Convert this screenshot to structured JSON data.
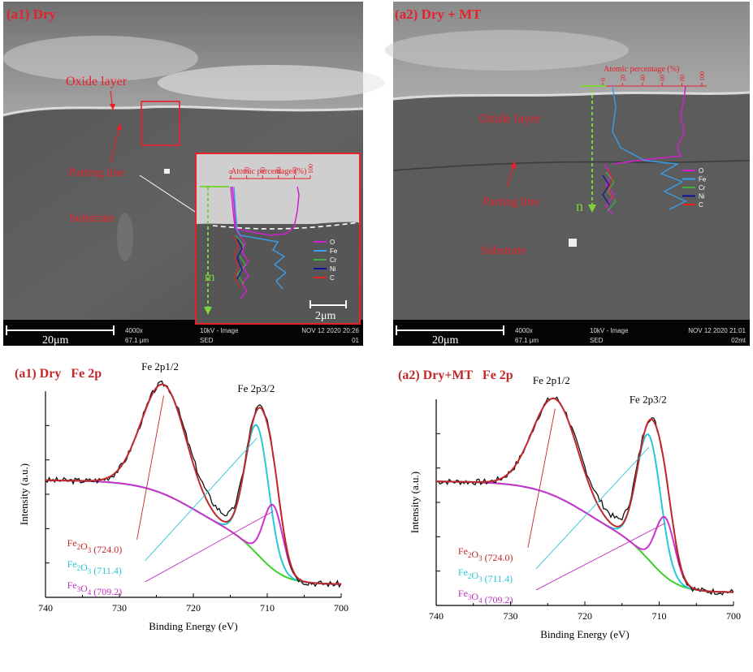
{
  "panels": {
    "a1": {
      "title": "(a1) Dry",
      "labels": {
        "oxide": "Oxide layer",
        "parting": "Parting line",
        "substrate": "Substrate"
      },
      "scalebar": "20μm",
      "inset_scalebar": "2μm",
      "depth_arrow": "m",
      "profile_axis_title": "Atomic percentage (%)",
      "profile_ticks": [
        "0",
        "20",
        "40",
        "60",
        "80",
        "100"
      ],
      "legend": [
        "O",
        "Fe",
        "Cr",
        "Ni",
        "C"
      ],
      "info": {
        "mag": "4000x",
        "hfw": "67.1 μm",
        "mode": "10kV - Image",
        "det": "SED",
        "date": "NOV 12 2020 20:26",
        "id": "01"
      }
    },
    "a2": {
      "title": "(a2) Dry + MT",
      "labels": {
        "oxide": "Oxide layer",
        "parting": "Parting line",
        "substrate": "Substrate"
      },
      "scalebar": "20μm",
      "depth_arrow": "n",
      "profile_axis_title": "Atomic percentage (%)",
      "profile_ticks": [
        "0",
        "20",
        "40",
        "60",
        "80",
        "100"
      ],
      "legend": [
        "O",
        "Fe",
        "Cr",
        "Ni",
        "C"
      ],
      "info": {
        "mag": "4000x",
        "hfw": "67.1 μm",
        "mode": "10kV - Image",
        "det": "SED",
        "date": "NOV 12 2020 21:01",
        "id": "02mt"
      }
    }
  },
  "colors": {
    "label_red": "#e8202a",
    "O": "#d020d0",
    "Fe": "#3a9ee8",
    "Cr": "#40b040",
    "Ni": "#1010a0",
    "C": "#e82020",
    "arrow": "#7ad33a"
  },
  "chart_data": [
    {
      "type": "line",
      "title": "(a1) Dry   Fe 2p",
      "xlabel": "Binding Energy (eV)",
      "ylabel": "Intensity (a.u.)",
      "xlim": [
        740,
        700
      ],
      "x_reversed": true,
      "xticks": [
        740,
        730,
        720,
        710,
        700
      ],
      "peak_labels": {
        "p12": "Fe 2p1/2",
        "p32": "Fe 2p3/2"
      },
      "annotations": [
        {
          "base": "Fe",
          "sub1": "2",
          "mid": "O",
          "sub2": "3",
          "tail": " (724.0)",
          "color": "#c0282a"
        },
        {
          "base": "Fe",
          "sub1": "2",
          "mid": "O",
          "sub2": "3",
          "tail": " (711.4)",
          "color": "#29c7d7"
        },
        {
          "base": "Fe",
          "sub1": "3",
          "mid": "O",
          "sub2": "4",
          "tail": " (709.2)",
          "color": "#c030c0"
        }
      ],
      "components": [
        {
          "name": "Fe2O3 (724.0)",
          "center": 724.0,
          "height": 0.63,
          "width": 3.0
        },
        {
          "name": "Fe2O3 (711.4)",
          "center": 711.4,
          "height": 0.74,
          "width": 1.6
        },
        {
          "name": "Fe3O4 (709.2)",
          "center": 709.2,
          "height": 0.37,
          "width": 1.3
        }
      ],
      "background": {
        "hi": 0.6,
        "lo": 0.0,
        "step1": 720,
        "step2": 711
      }
    },
    {
      "type": "line",
      "title": "(a2) Dry+MT   Fe 2p",
      "xlabel": "Binding Energy (eV)",
      "ylabel": "Intensity (a.u.)",
      "xlim": [
        740,
        700
      ],
      "x_reversed": true,
      "xticks": [
        740,
        730,
        720,
        710,
        700
      ],
      "peak_labels": {
        "p12": "Fe 2p1/2",
        "p32": "Fe 2p3/2"
      },
      "annotations": [
        {
          "base": "Fe",
          "sub1": "2",
          "mid": "O",
          "sub2": "3",
          "tail": " (724.0)",
          "color": "#c0282a"
        },
        {
          "base": "Fe",
          "sub1": "2",
          "mid": "O",
          "sub2": "3",
          "tail": " (711.4)",
          "color": "#29c7d7"
        },
        {
          "base": "Fe",
          "sub1": "3",
          "mid": "O",
          "sub2": "4",
          "tail": " (709.2)",
          "color": "#c030c0"
        }
      ],
      "components": [
        {
          "name": "Fe2O3 (724.0)",
          "center": 724.0,
          "height": 0.56,
          "width": 3.0
        },
        {
          "name": "Fe2O3 (711.4)",
          "center": 711.4,
          "height": 0.72,
          "width": 1.6
        },
        {
          "name": "Fe3O4 (709.2)",
          "center": 709.2,
          "height": 0.34,
          "width": 1.3
        }
      ],
      "background": {
        "hi": 0.64,
        "lo": 0.0,
        "step1": 720,
        "step2": 711
      }
    }
  ]
}
